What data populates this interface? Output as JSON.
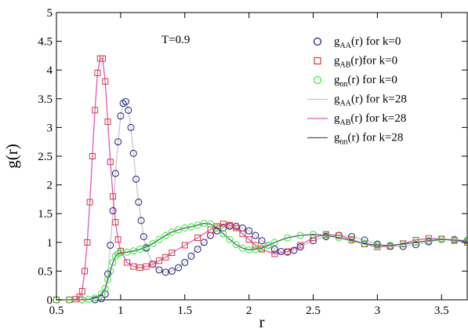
{
  "chart_data": {
    "type": "line",
    "annotation": "T=0.9",
    "xlabel": "r",
    "ylabel": "g(r)",
    "xlim": [
      0.5,
      3.7
    ],
    "ylim": [
      0,
      5
    ],
    "xticks": [
      0.5,
      1,
      1.5,
      2,
      2.5,
      3,
      3.5
    ],
    "xtick_labels": [
      "0.5",
      "1",
      "1.5",
      "2",
      "2.5",
      "3",
      "3.5"
    ],
    "yticks": [
      0,
      0.5,
      1,
      1.5,
      2,
      2.5,
      3,
      3.5,
      4,
      4.5,
      5
    ],
    "ytick_labels": [
      "0",
      "0.5",
      "1",
      "1.5",
      "2",
      "2.5",
      "3",
      "3.5",
      "4",
      "4.5",
      "5"
    ],
    "grid": false,
    "legend_position": "top-right",
    "series": [
      {
        "legend_main": "g",
        "legend_sub": "AA",
        "legend_rest": "(r) for k=0",
        "color": "#1c1c7a",
        "style": "markers",
        "marker": "circle",
        "x": [
          0.5,
          0.6,
          0.7,
          0.8,
          0.85,
          0.88,
          0.9,
          0.92,
          0.94,
          0.96,
          0.98,
          1.0,
          1.02,
          1.04,
          1.06,
          1.08,
          1.1,
          1.12,
          1.14,
          1.16,
          1.18,
          1.2,
          1.25,
          1.3,
          1.35,
          1.4,
          1.45,
          1.5,
          1.55,
          1.6,
          1.65,
          1.7,
          1.75,
          1.8,
          1.85,
          1.9,
          1.95,
          2.0,
          2.05,
          2.1,
          2.15,
          2.2,
          2.25,
          2.3,
          2.35,
          2.4,
          2.5,
          2.6,
          2.7,
          2.8,
          2.9,
          3.0,
          3.1,
          3.2,
          3.3,
          3.4,
          3.5,
          3.6,
          3.7
        ],
        "y": [
          0,
          0,
          0,
          0,
          0.02,
          0.1,
          0.45,
          0.95,
          1.55,
          2.2,
          2.75,
          3.2,
          3.42,
          3.45,
          3.3,
          3.0,
          2.55,
          2.1,
          1.7,
          1.38,
          1.1,
          0.9,
          0.62,
          0.52,
          0.48,
          0.5,
          0.56,
          0.65,
          0.76,
          0.88,
          1.0,
          1.12,
          1.2,
          1.25,
          1.28,
          1.28,
          1.25,
          1.2,
          1.12,
          1.03,
          0.95,
          0.88,
          0.84,
          0.83,
          0.86,
          0.92,
          1.03,
          1.1,
          1.12,
          1.1,
          1.04,
          0.97,
          0.93,
          0.93,
          0.96,
          1.01,
          1.05,
          1.05,
          1.03
        ]
      },
      {
        "legend_main": "g",
        "legend_sub": "AB",
        "legend_rest": "(r)for k=0",
        "color": "#d43a3a",
        "style": "markers",
        "marker": "square",
        "x": [
          0.5,
          0.6,
          0.65,
          0.68,
          0.7,
          0.72,
          0.74,
          0.76,
          0.78,
          0.8,
          0.82,
          0.84,
          0.86,
          0.88,
          0.9,
          0.92,
          0.94,
          0.96,
          0.98,
          1.0,
          1.05,
          1.1,
          1.15,
          1.2,
          1.25,
          1.3,
          1.35,
          1.4,
          1.5,
          1.6,
          1.7,
          1.75,
          1.8,
          1.85,
          1.9,
          1.95,
          2.0,
          2.05,
          2.1,
          2.2,
          2.3,
          2.4,
          2.5,
          2.6,
          2.7,
          2.8,
          2.9,
          3.0,
          3.1,
          3.2,
          3.3,
          3.4,
          3.5,
          3.6,
          3.7
        ],
        "y": [
          0,
          0,
          0.01,
          0.05,
          0.15,
          0.5,
          1.0,
          1.7,
          2.5,
          3.3,
          3.95,
          4.2,
          4.2,
          3.8,
          3.1,
          2.4,
          1.8,
          1.35,
          1.05,
          0.85,
          0.65,
          0.58,
          0.56,
          0.58,
          0.62,
          0.68,
          0.74,
          0.82,
          0.95,
          1.08,
          1.22,
          1.28,
          1.32,
          1.3,
          1.25,
          1.15,
          1.05,
          0.95,
          0.88,
          0.8,
          0.84,
          0.95,
          1.08,
          1.14,
          1.12,
          1.05,
          0.97,
          0.92,
          0.93,
          0.98,
          1.04,
          1.07,
          1.06,
          1.03,
          1.0
        ]
      },
      {
        "legend_main": "g",
        "legend_sub": "nn",
        "legend_rest": "(r) for k=0",
        "color": "#33e833",
        "style": "markers",
        "marker": "circle",
        "x": [
          0.5,
          0.6,
          0.7,
          0.75,
          0.8,
          0.85,
          0.88,
          0.9,
          0.92,
          0.94,
          0.96,
          0.98,
          1.0,
          1.05,
          1.1,
          1.15,
          1.2,
          1.25,
          1.3,
          1.35,
          1.4,
          1.45,
          1.5,
          1.55,
          1.6,
          1.65,
          1.7,
          1.75,
          1.8,
          1.85,
          1.9,
          1.95,
          2.0,
          2.05,
          2.1,
          2.15,
          2.2,
          2.3,
          2.4,
          2.5,
          2.6,
          2.7,
          2.8,
          2.9,
          3.0,
          3.1,
          3.2,
          3.3,
          3.4,
          3.5,
          3.6,
          3.7
        ],
        "y": [
          0,
          0,
          0,
          0.01,
          0.03,
          0.1,
          0.2,
          0.35,
          0.5,
          0.65,
          0.76,
          0.8,
          0.82,
          0.83,
          0.85,
          0.88,
          0.92,
          0.98,
          1.05,
          1.12,
          1.18,
          1.22,
          1.25,
          1.27,
          1.3,
          1.33,
          1.32,
          1.25,
          1.15,
          1.05,
          0.96,
          0.9,
          0.87,
          0.88,
          0.9,
          0.95,
          1.0,
          1.08,
          1.12,
          1.14,
          1.12,
          1.08,
          1.03,
          0.98,
          0.95,
          0.95,
          0.97,
          1.0,
          1.03,
          1.05,
          1.04,
          1.02
        ]
      },
      {
        "legend_main": "g",
        "legend_sub": "AA",
        "legend_rest": "(r) for k=28",
        "color": "#c8c8c8",
        "style": "line",
        "x": [
          0.5,
          0.6,
          0.7,
          0.8,
          0.85,
          0.88,
          0.9,
          0.92,
          0.94,
          0.96,
          0.98,
          1.0,
          1.02,
          1.04,
          1.06,
          1.08,
          1.1,
          1.12,
          1.14,
          1.16,
          1.18,
          1.2,
          1.25,
          1.3,
          1.35,
          1.4,
          1.45,
          1.5,
          1.55,
          1.6,
          1.65,
          1.7,
          1.75,
          1.8,
          1.85,
          1.9,
          1.95,
          2.0,
          2.05,
          2.1,
          2.15,
          2.2,
          2.25,
          2.3,
          2.35,
          2.4,
          2.5,
          2.6,
          2.7,
          2.8,
          2.9,
          3.0,
          3.1,
          3.2,
          3.3,
          3.4,
          3.5,
          3.6,
          3.7
        ],
        "y": [
          0,
          0,
          0,
          0,
          0.02,
          0.1,
          0.45,
          0.95,
          1.55,
          2.2,
          2.75,
          3.2,
          3.42,
          3.45,
          3.3,
          3.0,
          2.55,
          2.1,
          1.7,
          1.38,
          1.1,
          0.9,
          0.62,
          0.52,
          0.48,
          0.5,
          0.56,
          0.65,
          0.76,
          0.88,
          1.0,
          1.12,
          1.2,
          1.25,
          1.28,
          1.28,
          1.25,
          1.2,
          1.12,
          1.03,
          0.95,
          0.88,
          0.84,
          0.83,
          0.86,
          0.92,
          1.03,
          1.1,
          1.12,
          1.1,
          1.04,
          0.97,
          0.93,
          0.93,
          0.96,
          1.01,
          1.05,
          1.05,
          1.03
        ]
      },
      {
        "legend_main": "g",
        "legend_sub": "AB",
        "legend_rest": "(r) for k=28",
        "color": "#e05ab8",
        "style": "line",
        "x": [
          0.5,
          0.6,
          0.65,
          0.68,
          0.7,
          0.72,
          0.74,
          0.76,
          0.78,
          0.8,
          0.82,
          0.84,
          0.86,
          0.88,
          0.9,
          0.92,
          0.94,
          0.96,
          0.98,
          1.0,
          1.05,
          1.1,
          1.15,
          1.2,
          1.25,
          1.3,
          1.35,
          1.4,
          1.5,
          1.6,
          1.7,
          1.75,
          1.8,
          1.85,
          1.9,
          1.95,
          2.0,
          2.05,
          2.1,
          2.2,
          2.3,
          2.4,
          2.5,
          2.6,
          2.7,
          2.8,
          2.9,
          3.0,
          3.1,
          3.2,
          3.3,
          3.4,
          3.5,
          3.6,
          3.7
        ],
        "y": [
          0,
          0,
          0.01,
          0.05,
          0.15,
          0.5,
          1.0,
          1.7,
          2.5,
          3.3,
          3.95,
          4.2,
          4.2,
          3.8,
          3.1,
          2.4,
          1.8,
          1.35,
          1.05,
          0.85,
          0.65,
          0.58,
          0.56,
          0.58,
          0.62,
          0.68,
          0.74,
          0.82,
          0.95,
          1.08,
          1.22,
          1.28,
          1.32,
          1.3,
          1.25,
          1.15,
          1.05,
          0.95,
          0.88,
          0.8,
          0.84,
          0.95,
          1.08,
          1.14,
          1.12,
          1.05,
          0.97,
          0.92,
          0.93,
          0.98,
          1.04,
          1.07,
          1.06,
          1.03,
          1.0
        ]
      },
      {
        "legend_main": "g",
        "legend_sub": "nn",
        "legend_rest": "(r) for k=28",
        "color": "#505078",
        "style": "line",
        "x": [
          0.5,
          0.6,
          0.7,
          0.75,
          0.8,
          0.85,
          0.88,
          0.9,
          0.92,
          0.94,
          0.96,
          0.98,
          1.0,
          1.05,
          1.1,
          1.15,
          1.2,
          1.25,
          1.3,
          1.35,
          1.4,
          1.45,
          1.5,
          1.55,
          1.6,
          1.65,
          1.7,
          1.75,
          1.8,
          1.85,
          1.9,
          1.95,
          2.0,
          2.05,
          2.1,
          2.15,
          2.2,
          2.3,
          2.4,
          2.5,
          2.6,
          2.7,
          2.8,
          2.9,
          3.0,
          3.1,
          3.2,
          3.3,
          3.4,
          3.5,
          3.6,
          3.7
        ],
        "y": [
          0,
          0,
          0,
          0.01,
          0.03,
          0.1,
          0.2,
          0.35,
          0.5,
          0.65,
          0.76,
          0.8,
          0.82,
          0.83,
          0.85,
          0.88,
          0.92,
          0.98,
          1.05,
          1.12,
          1.18,
          1.22,
          1.25,
          1.27,
          1.3,
          1.33,
          1.32,
          1.25,
          1.15,
          1.05,
          0.96,
          0.9,
          0.87,
          0.88,
          0.9,
          0.95,
          1.0,
          1.08,
          1.12,
          1.14,
          1.12,
          1.08,
          1.03,
          0.98,
          0.95,
          0.95,
          0.97,
          1.0,
          1.03,
          1.05,
          1.04,
          1.02
        ]
      }
    ]
  }
}
